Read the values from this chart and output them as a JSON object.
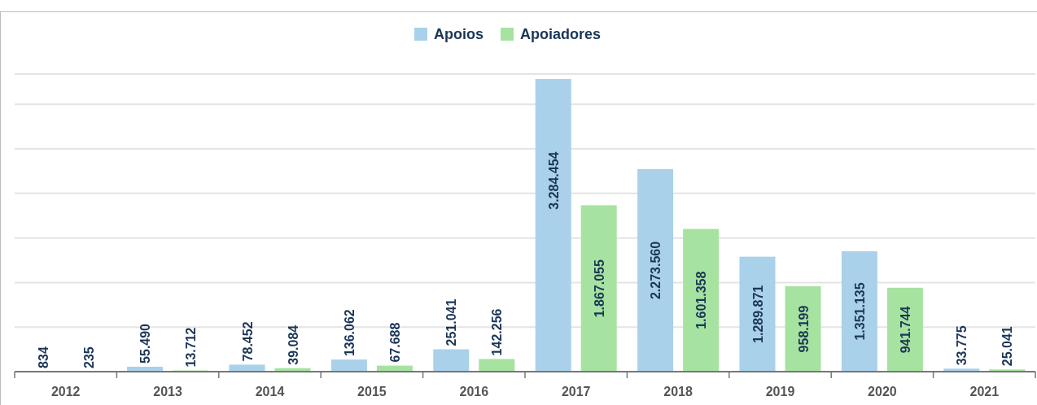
{
  "chart_data": {
    "type": "bar",
    "categories": [
      "2012",
      "2013",
      "2014",
      "2015",
      "2016",
      "2017",
      "2018",
      "2019",
      "2020",
      "2021"
    ],
    "series": [
      {
        "name": "Apoios",
        "color": "#a9d1ea",
        "values": [
          834,
          55490,
          78452,
          136062,
          251041,
          3284454,
          2273560,
          1289871,
          1351135,
          33775
        ],
        "value_labels": [
          "834",
          "55.490",
          "78.452",
          "136.062",
          "251.041",
          "3.284.454",
          "2.273.560",
          "1.289.871",
          "1.351.135",
          "33.775"
        ]
      },
      {
        "name": "Apoiadores",
        "color": "#a6e3a0",
        "values": [
          235,
          13712,
          39084,
          67688,
          142256,
          1867055,
          1601358,
          958199,
          941744,
          25041
        ],
        "value_labels": [
          "235",
          "13.712",
          "39.084",
          "67.688",
          "142.256",
          "1.867.055",
          "1.601.358",
          "958.199",
          "941.744",
          "25.041"
        ]
      }
    ],
    "ylim": [
      0,
      3340000
    ],
    "yticks": [
      {
        "value": 0,
        "label": null
      },
      {
        "value": 500000,
        "label": null
      },
      {
        "value": 1000000,
        "label": null
      },
      {
        "value": 1500000,
        "label": null
      },
      {
        "value": 2000000,
        "label": null
      },
      {
        "value": 2500000,
        "label": null
      },
      {
        "value": 3000000,
        "label": null
      }
    ],
    "grid": "y",
    "legend": "top",
    "tick_labels": "x"
  }
}
